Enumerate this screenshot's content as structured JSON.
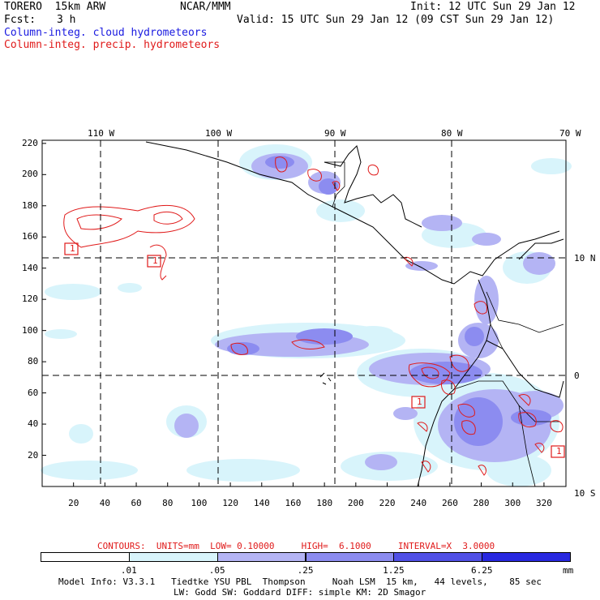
{
  "header": {
    "model": "TORERO  15km ARW",
    "org": "NCAR/MMM",
    "init": "Init: 12 UTC Sun 29 Jan 12",
    "fcst_label": "Fcst:",
    "fcst_value": "3 h",
    "valid": "Valid: 15 UTC Sun 29 Jan 12 (09 CST Sun 29 Jan 12)",
    "field1": "Column-integ. cloud hydrometeors",
    "field2": "Column-integ. precip. hydrometeors"
  },
  "map": {
    "lon_labels": [
      "110 W",
      "100 W",
      "90 W",
      "80 W",
      "70 W"
    ],
    "lat_labels": [
      "10 N",
      "0",
      "10 S"
    ],
    "x_ticks": [
      "20",
      "40",
      "60",
      "80",
      "100",
      "120",
      "140",
      "160",
      "180",
      "200",
      "220",
      "240",
      "260",
      "280",
      "300",
      "320"
    ],
    "y_ticks": [
      "220",
      "200",
      "180",
      "160",
      "140",
      "120",
      "100",
      "80",
      "60",
      "40",
      "20"
    ],
    "box_labels": [
      "1",
      "1",
      "1",
      "1"
    ]
  },
  "contour_info": {
    "text": "CONTOURS:  UNITS=mm  LOW= 0.10000     HIGH=  6.1000     INTERVAL=X  3.0000"
  },
  "colorbar": {
    "labels": [
      ".01",
      ".05",
      ".25",
      "1.25",
      "6.25"
    ],
    "unit": "mm",
    "colors": [
      "#ffffff",
      "#d8f4fb",
      "#b4b4f4",
      "#8c8cf0",
      "#5050e6",
      "#2828e0"
    ]
  },
  "footer": {
    "line1": "Model Info: V3.3.1   Tiedtke YSU PBL  Thompson     Noah LSM  15 km,   44 levels,    85 sec",
    "line2": "LW: Godd SW: Goddard DIFF: simple KM: 2D Smagor"
  }
}
